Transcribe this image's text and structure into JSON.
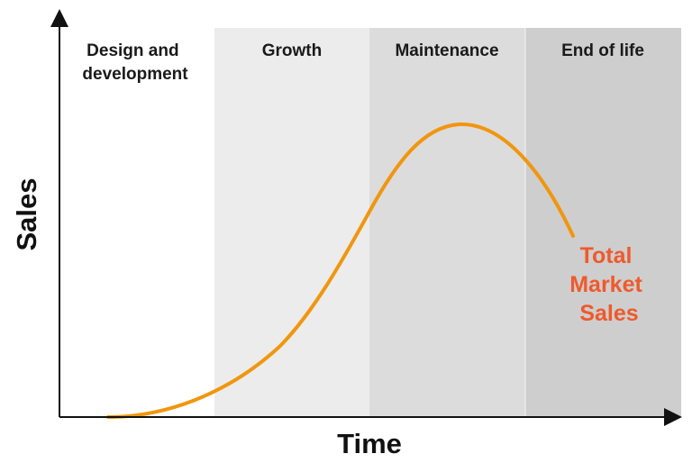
{
  "colors": {
    "axis": "#111111",
    "curve": "#f0960f",
    "series_label": "#ee5a2c",
    "phase_fills": [
      "#ffffff",
      "#ececec",
      "#dcdcdc",
      "#cecece"
    ]
  },
  "axes": {
    "x_label": "Time",
    "y_label": "Sales"
  },
  "phases": [
    {
      "id": "design",
      "lines": [
        "Design and",
        "development"
      ]
    },
    {
      "id": "growth",
      "lines": [
        "Growth"
      ]
    },
    {
      "id": "maintenance",
      "lines": [
        "Maintenance"
      ]
    },
    {
      "id": "end-of-life",
      "lines": [
        "End of life"
      ]
    }
  ],
  "series": {
    "lines": [
      "Total",
      "Market",
      "Sales"
    ]
  }
}
